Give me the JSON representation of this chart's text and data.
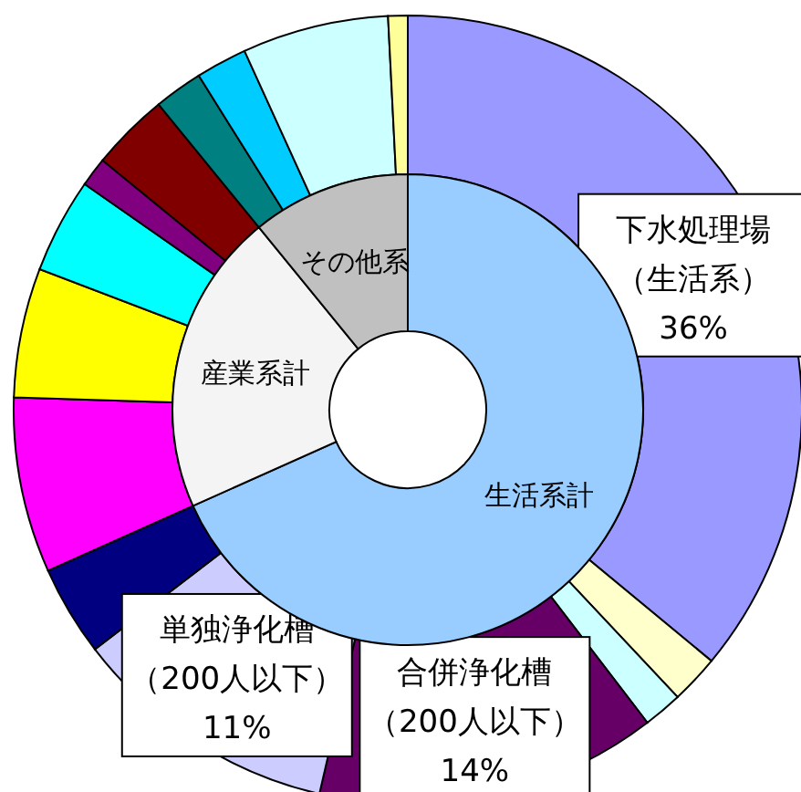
{
  "chart_data": [
    {
      "type": "donut",
      "categories": [
        "生活系計",
        "産業系計",
        "その他系"
      ],
      "values": [
        68.3,
        20.8,
        10.9
      ],
      "colors": [
        "#99ccff",
        "#f4f4f4",
        "#c0c0c0"
      ]
    },
    {
      "type": "donut",
      "categories": [
        "下水処理場（生活系）",
        null,
        null,
        "合併浄化槽（200人以下）",
        "単独浄化槽（200人以下）",
        null,
        null,
        null,
        null,
        null,
        null,
        null,
        null,
        null,
        null
      ],
      "values": [
        36,
        2,
        1.6,
        14,
        11,
        3.7,
        7.2,
        5.3,
        3.9,
        1.2,
        3.2,
        2,
        2.1,
        6,
        0.8
      ],
      "value_labels": [
        "36%",
        null,
        null,
        "14%",
        "11%",
        null,
        null,
        null,
        null,
        null,
        null,
        null,
        null,
        null,
        null
      ],
      "colors": [
        "#9999ff",
        "#ffffcc",
        "#ccffff",
        "#660066",
        "#ccccff",
        "#000080",
        "#ff00ff",
        "#ffff00",
        "#00ffff",
        "#800080",
        "#800000",
        "#008080",
        "#00ccff",
        "#ccffff",
        "#ffff99"
      ]
    }
  ]
}
